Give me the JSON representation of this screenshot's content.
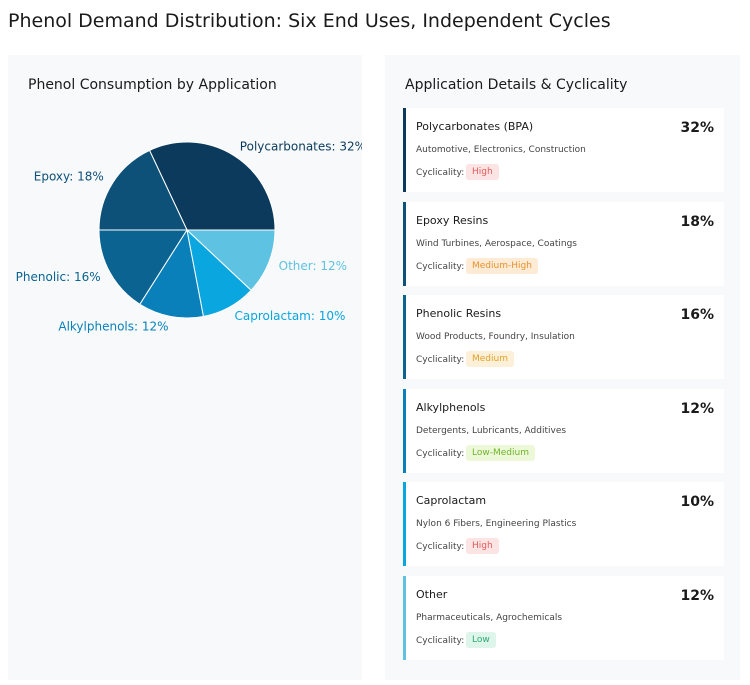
{
  "header": {
    "title": "Phenol Demand Distribution: Six End Uses, Independent Cycles"
  },
  "chart_data": {
    "type": "pie",
    "title": "Phenol Consumption by Application",
    "values": [
      32,
      18,
      16,
      12,
      10,
      12
    ],
    "value_labels": [
      "Polycarbonates: 32%",
      "Epoxy: 18%",
      "Phenolic: 16%",
      "Alkylphenols: 12%",
      "Caprolactam: 10%",
      "Other: 12%"
    ],
    "colors": [
      "#0b3a5c",
      "#0d5078",
      "#0b6391",
      "#0a80bb",
      "#0aa6e0",
      "#5ec2e2"
    ]
  },
  "details": {
    "title": "Application Details & Cyclicality",
    "cards": [
      {
        "name": "Polycarbonates (BPA)",
        "share": "32%",
        "uses": "Automotive, Electronics, Construction",
        "cyclicality_label": "Cyclicality:",
        "cyclicality": "High"
      },
      {
        "name": "Epoxy Resins",
        "share": "18%",
        "uses": "Wind Turbines, Aerospace, Coatings",
        "cyclicality_label": "Cyclicality:",
        "cyclicality": "Medium-High"
      },
      {
        "name": "Phenolic Resins",
        "share": "16%",
        "uses": "Wood Products, Foundry, Insulation",
        "cyclicality_label": "Cyclicality:",
        "cyclicality": "Medium"
      },
      {
        "name": "Alkylphenols",
        "share": "12%",
        "uses": "Detergents, Lubricants, Additives",
        "cyclicality_label": "Cyclicality:",
        "cyclicality": "Low-Medium"
      },
      {
        "name": "Caprolactam",
        "share": "10%",
        "uses": "Nylon 6 Fibers, Engineering Plastics",
        "cyclicality_label": "Cyclicality:",
        "cyclicality": "High"
      },
      {
        "name": "Other",
        "share": "12%",
        "uses": "Pharmaceuticals, Agrochemicals",
        "cyclicality_label": "Cyclicality:",
        "cyclicality": "Low"
      }
    ]
  }
}
